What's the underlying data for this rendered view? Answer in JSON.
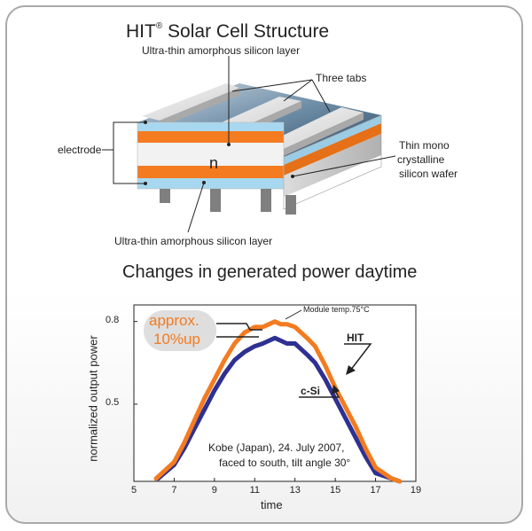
{
  "diagram": {
    "title_prefix": "HIT",
    "title_reg": "®",
    "title_suffix": "Solar Cell Structure",
    "top_layer_label": "Ultra-thin amorphous silicon layer",
    "tabs_label": "Three tabs",
    "electrode_label": "electrode",
    "n_label": "n",
    "wafer_label_1": "Thin mono",
    "wafer_label_2": "crystalline",
    "wafer_label_3": "silicon wafer",
    "bottom_layer_label": "Ultra-thin amorphous silicon layer",
    "colors": {
      "amorphous": "#f47b20",
      "electrode": "#a8d8f0",
      "wafer": "#e8e8e8",
      "tabs": "#d8d8d8"
    }
  },
  "chart_title": "Changes in generated power daytime",
  "chart_data": {
    "type": "line",
    "xlabel": "time",
    "ylabel": "normalized output power",
    "xlim": [
      5,
      19
    ],
    "ylim": [
      0.22,
      0.86
    ],
    "x_ticks": [
      5,
      7,
      9,
      11,
      13,
      15,
      17,
      19
    ],
    "y_ticks": [
      0.5,
      0.8
    ],
    "series": [
      {
        "name": "HIT",
        "color": "#f47b20",
        "x": [
          6.1,
          7,
          7.5,
          8,
          8.5,
          9,
          9.5,
          10,
          10.5,
          11,
          11.4,
          11.7,
          12,
          12.3,
          12.6,
          13,
          13.3,
          13.6,
          14,
          14.5,
          15,
          15.5,
          16,
          16.5,
          17,
          17.4,
          17.8,
          18.2
        ],
        "y": [
          0.23,
          0.29,
          0.36,
          0.44,
          0.52,
          0.59,
          0.66,
          0.72,
          0.76,
          0.78,
          0.78,
          0.79,
          0.8,
          0.79,
          0.79,
          0.78,
          0.76,
          0.74,
          0.71,
          0.64,
          0.56,
          0.49,
          0.42,
          0.34,
          0.27,
          0.25,
          0.23,
          0.22
        ]
      },
      {
        "name": "c-Si",
        "color": "#2e3191",
        "x": [
          6.2,
          7,
          7.5,
          8,
          8.5,
          9,
          9.5,
          10,
          10.5,
          11,
          11.4,
          11.7,
          12,
          12.3,
          12.6,
          13,
          13.3,
          13.6,
          14,
          14.5,
          15,
          15.5,
          16,
          16.5,
          17,
          17.4,
          17.8,
          18.2
        ],
        "y": [
          0.23,
          0.28,
          0.34,
          0.41,
          0.48,
          0.55,
          0.61,
          0.66,
          0.69,
          0.71,
          0.72,
          0.73,
          0.74,
          0.73,
          0.72,
          0.72,
          0.7,
          0.68,
          0.65,
          0.59,
          0.52,
          0.45,
          0.38,
          0.31,
          0.25,
          0.24,
          0.23,
          0.22
        ]
      }
    ],
    "annotations": {
      "module_temp": "Module temp.75°C",
      "approx_1": "approx.",
      "approx_2": "10%up",
      "hit_label": "HIT",
      "csi_label": "c-Si",
      "note_1": "Kobe (Japan), 24. July 2007,",
      "note_2": "faced to south, tilt angle 30°"
    }
  }
}
